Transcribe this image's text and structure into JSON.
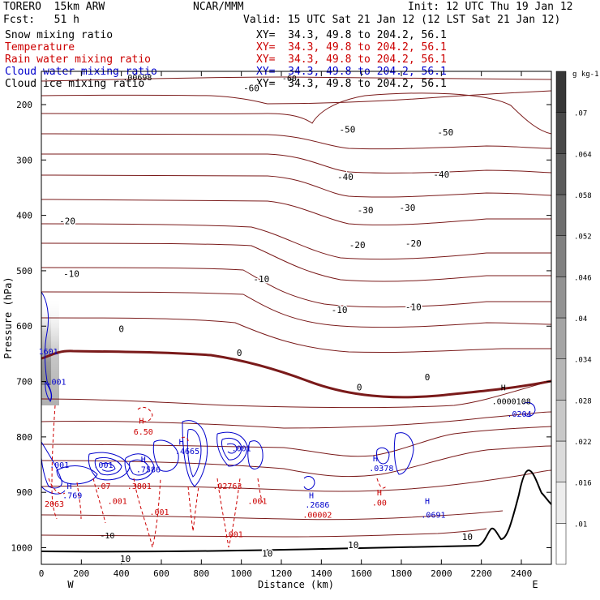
{
  "header": {
    "model": "TORERO  15km ARW",
    "center": "NCAR/MMM",
    "init": "Init: 12 UTC Thu 19 Jan 12",
    "fcst": "Fcst:   51 h",
    "valid": "Valid: 15 UTC Sat 21 Jan 12 (12 LST Sat 21 Jan 12)"
  },
  "fields": [
    {
      "name": "Snow mixing ratio",
      "xy": "XY=  34.3, 49.8 to 204.2, 56.1",
      "color": "#000000"
    },
    {
      "name": "Temperature",
      "xy": "XY=  34.3, 49.8 to 204.2, 56.1",
      "color": "#cc0000"
    },
    {
      "name": "Rain water mixing ratio",
      "xy": "XY=  34.3, 49.8 to 204.2, 56.1",
      "color": "#cc0000"
    },
    {
      "name": "Cloud water mixing ratio",
      "xy": "XY=  34.3, 49.8 to 204.2, 56.1",
      "color": "#0000cc"
    },
    {
      "name": "Cloud ice mixing ratio",
      "xy": "XY=  34.3, 49.8 to 204.2, 56.1",
      "color": "#000000"
    }
  ],
  "chart_data": {
    "type": "contour-cross-section",
    "xlabel": "Distance (km)",
    "ylabel": "Pressure (hPa)",
    "xlim": [
      0,
      2550
    ],
    "ylim": [
      1030,
      140
    ],
    "x_ticks": [
      0,
      200,
      400,
      600,
      800,
      1000,
      1200,
      1400,
      1600,
      1800,
      2000,
      2200,
      2400
    ],
    "y_ticks": [
      200,
      300,
      400,
      500,
      600,
      700,
      800,
      900,
      1000
    ],
    "x_end_labels": [
      "W",
      "E"
    ],
    "colorbar": {
      "unit": "g kg-1",
      "ticks": [
        ".01",
        ".016",
        ".022",
        ".028",
        ".034",
        ".04",
        ".046",
        ".052",
        ".058",
        ".064",
        ".07"
      ]
    },
    "temperature_contours": [
      {
        "level": "-60",
        "x": 1050,
        "p": 170
      },
      {
        "level": "-50",
        "x": 1530,
        "p": 245
      },
      {
        "level": "-50",
        "x": 2020,
        "p": 250
      },
      {
        "level": "-40",
        "x": 1520,
        "p": 330
      },
      {
        "level": "-40",
        "x": 2000,
        "p": 326
      },
      {
        "level": "-30",
        "x": 1620,
        "p": 390
      },
      {
        "level": "-30",
        "x": 1830,
        "p": 386
      },
      {
        "level": "-20",
        "x": 130,
        "p": 410
      },
      {
        "level": "-20",
        "x": 1580,
        "p": 453
      },
      {
        "level": "-20",
        "x": 1860,
        "p": 450
      },
      {
        "level": "-10",
        "x": 150,
        "p": 505
      },
      {
        "level": "-10",
        "x": 1100,
        "p": 515
      },
      {
        "level": "-10",
        "x": 1490,
        "p": 570
      },
      {
        "level": "-10",
        "x": 1860,
        "p": 565
      },
      {
        "level": "0",
        "x": 400,
        "p": 605
      },
      {
        "level": "0",
        "x": 990,
        "p": 648
      },
      {
        "level": "0",
        "x": 1590,
        "p": 710
      },
      {
        "level": "0",
        "x": 1930,
        "p": 692
      },
      {
        "level": "10",
        "x": 420,
        "p": 1020
      },
      {
        "level": "10",
        "x": 1130,
        "p": 1010
      },
      {
        "level": "10",
        "x": 1560,
        "p": 995
      },
      {
        "level": "10",
        "x": 2130,
        "p": 980
      }
    ],
    "annotations": [
      {
        "text": ".00698",
        "x": 480,
        "p": 150,
        "color": "#000000"
      },
      {
        "text": "-60",
        "x": 1240,
        "p": 152,
        "color": "#000000"
      },
      {
        "text": "H",
        "x": 2310,
        "p": 710,
        "color": "#000000"
      },
      {
        "text": ".0000108",
        "x": 2350,
        "p": 735,
        "color": "#000000"
      },
      {
        "text": ".0204",
        "x": 2390,
        "p": 758,
        "color": "#0000cc"
      },
      {
        "text": "1601",
        "x": 35,
        "p": 645,
        "color": "#0000cc"
      },
      {
        "text": ".001",
        "x": 75,
        "p": 700,
        "color": "#0000cc"
      },
      {
        "text": "H",
        "x": 500,
        "p": 770,
        "color": "#cc0000"
      },
      {
        "text": "6.50",
        "x": 510,
        "p": 790,
        "color": "#cc0000"
      },
      {
        "text": "H",
        "x": 700,
        "p": 808,
        "color": "#0000cc"
      },
      {
        "text": ".4665",
        "x": 730,
        "p": 825,
        "color": "#0000cc"
      },
      {
        "text": ".001",
        "x": 1000,
        "p": 820,
        "color": "#0000cc"
      },
      {
        "text": ".001",
        "x": 90,
        "p": 850,
        "color": "#0000cc"
      },
      {
        "text": ".001",
        "x": 310,
        "p": 850,
        "color": "#0000cc"
      },
      {
        "text": "H",
        "x": 510,
        "p": 840,
        "color": "#0000cc"
      },
      {
        "text": ".7586",
        "x": 535,
        "p": 858,
        "color": "#0000cc"
      },
      {
        "text": ".07",
        "x": 310,
        "p": 888,
        "color": "#cc0000"
      },
      {
        "text": ".3801",
        "x": 490,
        "p": 888,
        "color": "#cc0000"
      },
      {
        "text": ".02763",
        "x": 930,
        "p": 888,
        "color": "#cc0000"
      },
      {
        "text": "H",
        "x": 140,
        "p": 888,
        "color": "#0000cc"
      },
      {
        "text": ".769",
        "x": 155,
        "p": 905,
        "color": "#0000cc"
      },
      {
        "text": "2063",
        "x": 65,
        "p": 920,
        "color": "#cc0000"
      },
      {
        "text": ".001",
        "x": 380,
        "p": 915,
        "color": "#cc0000"
      },
      {
        "text": ".001",
        "x": 1080,
        "p": 915,
        "color": "#cc0000"
      },
      {
        "text": ".001",
        "x": 590,
        "p": 935,
        "color": "#cc0000"
      },
      {
        "text": "H",
        "x": 1350,
        "p": 905,
        "color": "#0000cc"
      },
      {
        "text": ".2686",
        "x": 1380,
        "p": 922,
        "color": "#0000cc"
      },
      {
        "text": ".00002",
        "x": 1380,
        "p": 940,
        "color": "#cc0000"
      },
      {
        "text": "H",
        "x": 1670,
        "p": 838,
        "color": "#0000cc"
      },
      {
        "text": ".0378",
        "x": 1700,
        "p": 856,
        "color": "#0000cc"
      },
      {
        "text": "H",
        "x": 1690,
        "p": 900,
        "color": "#cc0000"
      },
      {
        "text": ".00",
        "x": 1690,
        "p": 918,
        "color": "#cc0000"
      },
      {
        "text": "H",
        "x": 1930,
        "p": 915,
        "color": "#0000cc"
      },
      {
        "text": ".0691",
        "x": 1960,
        "p": 940,
        "color": "#0000cc"
      },
      {
        "text": ".001",
        "x": 960,
        "p": 975,
        "color": "#cc0000"
      },
      {
        "text": "-10",
        "x": 330,
        "p": 977,
        "color": "#000000"
      }
    ]
  }
}
